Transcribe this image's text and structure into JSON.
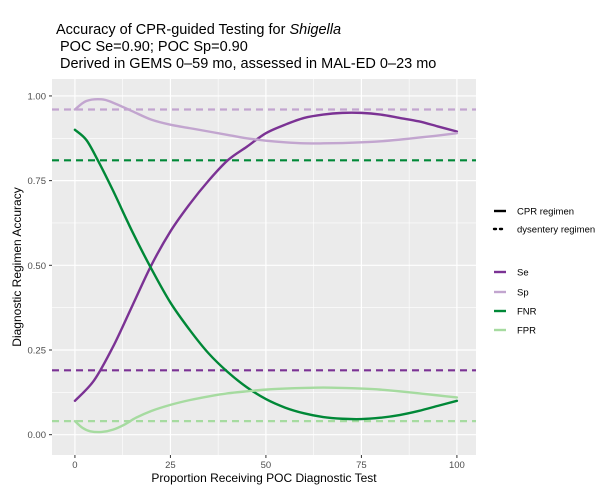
{
  "chart_data": {
    "type": "line",
    "title": {
      "line1_prefix": "Accuracy of CPR-guided Testing for ",
      "line1_italic": "Shigella",
      "line2": "POC Se=0.90; POC Sp=0.90",
      "line3": "Derived in GEMS 0–59 mo, assessed in MAL-ED 0–23 mo"
    },
    "xlabel": "Proportion Receiving POC Diagnostic Test",
    "ylabel": "Diagnostic Regimen Accuracy",
    "xlim": [
      -6,
      105
    ],
    "ylim": [
      -0.06,
      1.05
    ],
    "xticks": [
      0,
      25,
      50,
      75,
      100
    ],
    "xtick_labels": [
      "0",
      "25",
      "50",
      "75",
      "100"
    ],
    "yticks": [
      0,
      0.25,
      0.5,
      0.75,
      1.0
    ],
    "ytick_labels": [
      "0.00",
      "0.25",
      "0.50",
      "0.75",
      "1.00"
    ],
    "grid": true,
    "background": "#ebebeb",
    "legend_position": "right",
    "linetype_legend": [
      {
        "label": "CPR regimen",
        "style": "solid"
      },
      {
        "label": "dysentery regimen",
        "style": "dotted"
      }
    ],
    "series": [
      {
        "name": "Se",
        "color": "#7b3294",
        "x": [
          0,
          5,
          10,
          15,
          20,
          25,
          30,
          35,
          40,
          45,
          50,
          55,
          60,
          65,
          70,
          75,
          80,
          85,
          90,
          95,
          100
        ],
        "y": [
          0.1,
          0.16,
          0.26,
          0.38,
          0.5,
          0.6,
          0.68,
          0.75,
          0.81,
          0.85,
          0.89,
          0.915,
          0.935,
          0.945,
          0.95,
          0.95,
          0.945,
          0.935,
          0.925,
          0.91,
          0.895
        ]
      },
      {
        "name": "Sp",
        "color": "#c2a5cf",
        "x": [
          0,
          3,
          7,
          10,
          15,
          20,
          25,
          30,
          35,
          40,
          45,
          50,
          55,
          60,
          65,
          70,
          75,
          80,
          85,
          90,
          95,
          100
        ],
        "y": [
          0.96,
          0.985,
          0.99,
          0.98,
          0.955,
          0.93,
          0.915,
          0.905,
          0.895,
          0.885,
          0.875,
          0.868,
          0.863,
          0.86,
          0.86,
          0.861,
          0.863,
          0.866,
          0.871,
          0.877,
          0.883,
          0.89
        ]
      },
      {
        "name": "FNR",
        "color": "#008837",
        "x": [
          0,
          3,
          6,
          10,
          15,
          20,
          25,
          30,
          35,
          40,
          45,
          50,
          55,
          60,
          65,
          70,
          75,
          80,
          85,
          90,
          95,
          100
        ],
        "y": [
          0.9,
          0.87,
          0.81,
          0.72,
          0.6,
          0.49,
          0.39,
          0.31,
          0.24,
          0.185,
          0.14,
          0.105,
          0.08,
          0.063,
          0.052,
          0.047,
          0.046,
          0.05,
          0.058,
          0.07,
          0.085,
          0.1
        ]
      },
      {
        "name": "FPR",
        "color": "#a6dba0",
        "x": [
          0,
          2,
          4,
          7,
          10,
          13,
          16,
          20,
          25,
          30,
          35,
          40,
          45,
          50,
          55,
          60,
          65,
          70,
          75,
          80,
          85,
          90,
          95,
          100
        ],
        "y": [
          0.04,
          0.02,
          0.01,
          0.008,
          0.015,
          0.03,
          0.05,
          0.07,
          0.088,
          0.102,
          0.113,
          0.122,
          0.128,
          0.133,
          0.136,
          0.138,
          0.139,
          0.138,
          0.136,
          0.133,
          0.128,
          0.122,
          0.116,
          0.11
        ]
      }
    ],
    "reference_lines": [
      {
        "name": "Sp",
        "y": 0.96,
        "color": "#c2a5cf"
      },
      {
        "name": "FNR",
        "y": 0.81,
        "color": "#008837"
      },
      {
        "name": "Se",
        "y": 0.19,
        "color": "#7b3294"
      },
      {
        "name": "FPR",
        "y": 0.04,
        "color": "#a6dba0"
      }
    ]
  }
}
